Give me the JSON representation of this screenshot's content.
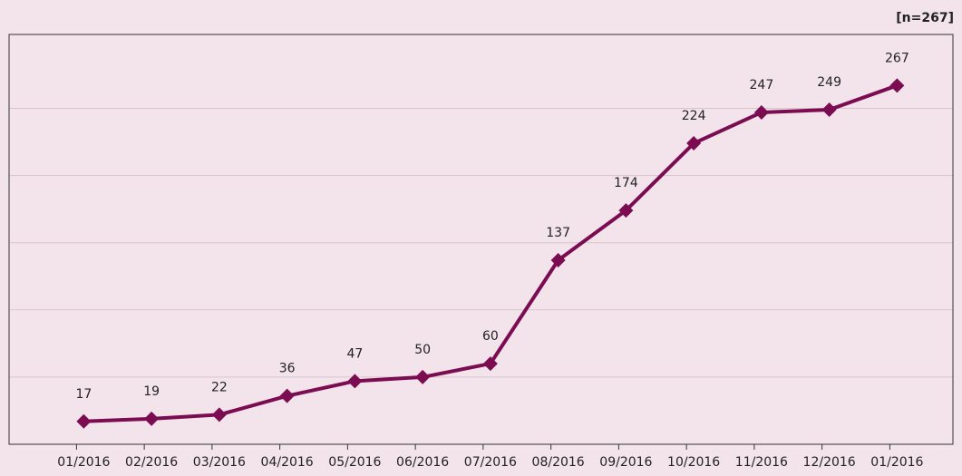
{
  "chart_data": {
    "type": "line",
    "annotation": "[n=267]",
    "categories": [
      "01/2016",
      "02/2016",
      "03/2016",
      "04/2016",
      "05/2016",
      "06/2016",
      "07/2016",
      "08/2016",
      "09/2016",
      "10/2016",
      "11/2016",
      "12/2016",
      "01/2016"
    ],
    "values": [
      17,
      19,
      22,
      36,
      47,
      50,
      60,
      137,
      174,
      224,
      247,
      249,
      267
    ],
    "color": "#7b0c52",
    "ylim": [
      0,
      305
    ],
    "yticks": [
      50,
      100,
      150,
      200,
      250
    ],
    "grid": true
  }
}
